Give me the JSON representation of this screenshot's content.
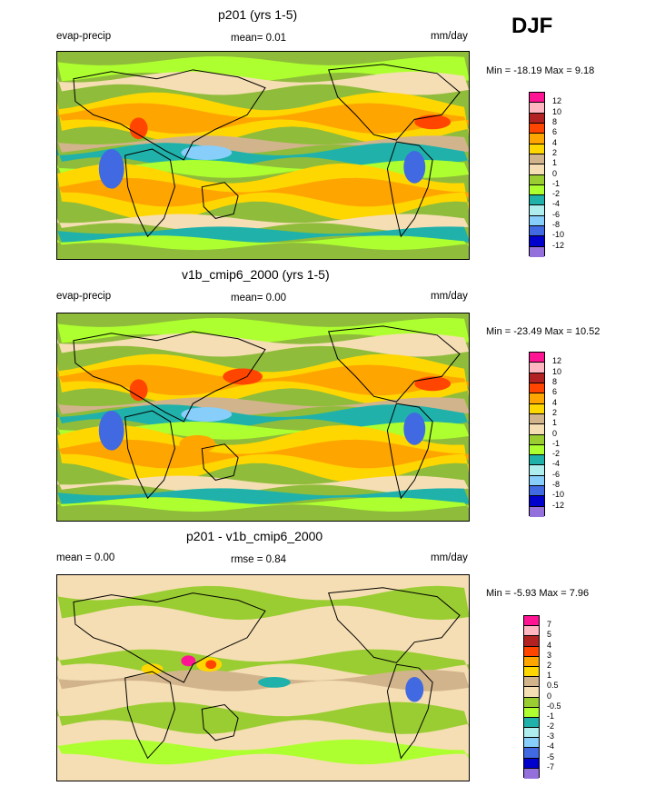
{
  "season": "DJF",
  "chart_data": [
    {
      "type": "heatmap",
      "title": "p201 (yrs 1-5)",
      "variable": "evap-precip",
      "stat": "mean=  0.01",
      "units": "mm/day",
      "minmax": "Min = -18.19 Max =   9.18",
      "colorbar_ticks": [
        "12",
        "10",
        "8",
        "6",
        "4",
        "2",
        "1",
        "0",
        "-1",
        "-2",
        "-4",
        "-6",
        "-8",
        "-10",
        "-12"
      ],
      "colorbar_colors": [
        "#ff1493",
        "#ffb6c1",
        "#b22222",
        "#ff4500",
        "#ffa500",
        "#ffd700",
        "#d2b48c",
        "#f5deb3",
        "#9acd32",
        "#adff2f",
        "#20b2aa",
        "#afeeee",
        "#87cefa",
        "#4169e1",
        "#0000cd",
        "#9370db"
      ]
    },
    {
      "type": "heatmap",
      "title": "v1b_cmip6_2000 (yrs 1-5)",
      "variable": "evap-precip",
      "stat": "mean=  0.00",
      "units": "mm/day",
      "minmax": "Min = -23.49 Max =  10.52",
      "colorbar_ticks": [
        "12",
        "10",
        "8",
        "6",
        "4",
        "2",
        "1",
        "0",
        "-1",
        "-2",
        "-4",
        "-6",
        "-8",
        "-10",
        "-12"
      ],
      "colorbar_colors": [
        "#ff1493",
        "#ffb6c1",
        "#b22222",
        "#ff4500",
        "#ffa500",
        "#ffd700",
        "#d2b48c",
        "#f5deb3",
        "#9acd32",
        "#adff2f",
        "#20b2aa",
        "#afeeee",
        "#87cefa",
        "#4169e1",
        "#0000cd",
        "#9370db"
      ]
    },
    {
      "type": "heatmap",
      "title": "p201 - v1b_cmip6_2000",
      "variable": "mean =   0.00",
      "stat": "rmse =   0.84",
      "units": "mm/day",
      "minmax": "Min =  -5.93 Max =   7.96",
      "colorbar_ticks": [
        "7",
        "5",
        "4",
        "3",
        "2",
        "1",
        "0.5",
        "0",
        "-0.5",
        "-1",
        "-2",
        "-3",
        "-4",
        "-5",
        "-7"
      ],
      "colorbar_colors": [
        "#ff1493",
        "#ffb6c1",
        "#b22222",
        "#ff4500",
        "#ffa500",
        "#ffd700",
        "#d2b48c",
        "#f5deb3",
        "#9acd32",
        "#adff2f",
        "#20b2aa",
        "#afeeee",
        "#87cefa",
        "#4169e1",
        "#0000cd",
        "#9370db"
      ]
    }
  ]
}
